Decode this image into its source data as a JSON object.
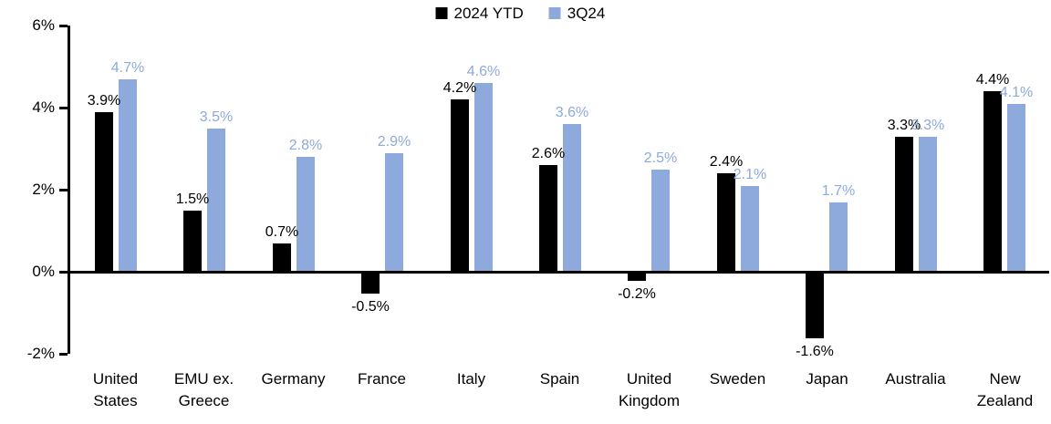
{
  "chart_data": {
    "type": "bar",
    "title": "",
    "xlabel": "",
    "ylabel": "",
    "categories": [
      "United States",
      "EMU ex. Greece",
      "Germany",
      "France",
      "Italy",
      "Spain",
      "United Kingdom",
      "Sweden",
      "Japan",
      "Australia",
      "New Zealand"
    ],
    "category_lines": [
      [
        "United",
        "States"
      ],
      [
        "EMU ex.",
        "Greece"
      ],
      [
        "Germany"
      ],
      [
        "France"
      ],
      [
        "Italy"
      ],
      [
        "Spain"
      ],
      [
        "United",
        "Kingdom"
      ],
      [
        "Sweden"
      ],
      [
        "Japan"
      ],
      [
        "Australia"
      ],
      [
        "New",
        "Zealand"
      ]
    ],
    "series": [
      {
        "name": "2024 YTD",
        "color": "#000000",
        "values": [
          3.9,
          1.5,
          0.7,
          -0.5,
          4.2,
          2.6,
          -0.2,
          2.4,
          -1.6,
          3.3,
          4.4
        ],
        "data_labels": [
          "3.9%",
          "1.5%",
          "0.7%",
          "-0.5%",
          "4.2%",
          "2.6%",
          "-0.2%",
          "2.4%",
          "-1.6%",
          "3.3%",
          "4.4%"
        ]
      },
      {
        "name": "3Q24",
        "color": "#8EA9DB",
        "values": [
          4.7,
          3.5,
          2.8,
          2.9,
          4.6,
          3.6,
          2.5,
          2.1,
          1.7,
          3.3,
          4.1
        ],
        "data_labels": [
          "4.7%",
          "3.5%",
          "2.8%",
          "2.9%",
          "4.6%",
          "3.6%",
          "2.5%",
          "2.1%",
          "1.7%",
          "3.3%",
          "4.1%"
        ]
      }
    ],
    "ylim": [
      -2,
      6
    ],
    "yticks": [
      {
        "value": 6,
        "label": "6%"
      },
      {
        "value": 4,
        "label": "4%"
      },
      {
        "value": 2,
        "label": "2%"
      },
      {
        "value": 0,
        "label": "0%"
      },
      {
        "value": -2,
        "label": "-2%"
      }
    ],
    "grid": false,
    "legend_position": "top-center"
  }
}
